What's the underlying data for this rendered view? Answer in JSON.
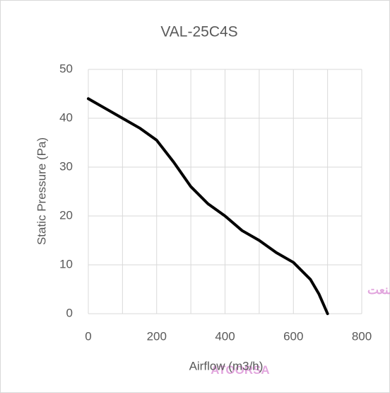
{
  "chart_data": {
    "type": "line",
    "title": "VAL-25C4S",
    "x_label": "Airflow (m3/h)",
    "y_label": "Static Pressure (Pa)",
    "watermark_latin": "ATOORSA",
    "watermark_persian": "ر صنعت",
    "x": [
      0,
      50,
      100,
      150,
      200,
      250,
      300,
      350,
      400,
      450,
      500,
      550,
      600,
      650,
      675,
      700
    ],
    "series": [
      {
        "name": "VAL-25C4S",
        "color": "#000000",
        "values": [
          44,
          42,
          40,
          38,
          35.5,
          31,
          26,
          22.5,
          20,
          17,
          15,
          12.5,
          10.5,
          7,
          4,
          0
        ]
      }
    ],
    "xlim": [
      0,
      800
    ],
    "xticks": [
      0,
      200,
      400,
      600,
      800
    ],
    "x_minor_ticks": [
      100,
      300,
      500,
      700
    ],
    "ylim": [
      0,
      50
    ],
    "yticks": [
      0,
      10,
      20,
      30,
      40,
      50
    ],
    "grid": true
  }
}
